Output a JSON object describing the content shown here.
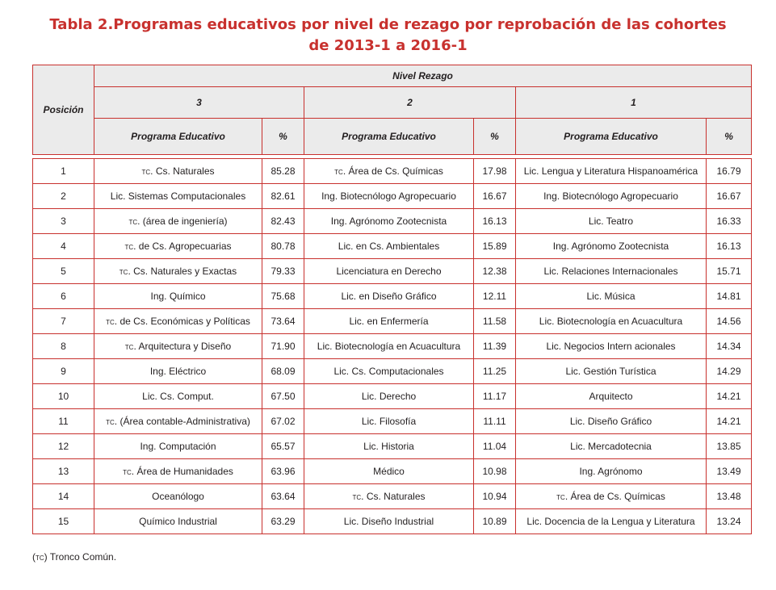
{
  "title": {
    "line1": "Tabla 2.Programas educativos por nivel de rezago por reprobación de las cohortes",
    "line2": "de 2013-1 a 2016-1"
  },
  "headers": {
    "posicion": "Posición",
    "nivel_rezago": "Nivel Rezago",
    "levels": [
      "3",
      "2",
      "1"
    ],
    "programa": "Programa Educativo",
    "pct": "%"
  },
  "rows": [
    {
      "pos": "1",
      "p3": "tc. Cs. Naturales",
      "v3": "85.28",
      "p2": "tc. Área de Cs. Químicas",
      "v2": "17.98",
      "p1": "Lic. Lengua y Literatura Hispanoamérica",
      "v1": "16.79"
    },
    {
      "pos": "2",
      "p3": "Lic. Sistemas Computacionales",
      "v3": "82.61",
      "p2": "Ing. Biotecnólogo Agropecuario",
      "v2": "16.67",
      "p1": "Ing. Biotecnólogo Agropecuario",
      "v1": "16.67"
    },
    {
      "pos": "3",
      "p3": "tc. (área de ingeniería)",
      "v3": "82.43",
      "p2": "Ing. Agrónomo Zootecnista",
      "v2": "16.13",
      "p1": "Lic. Teatro",
      "v1": "16.33"
    },
    {
      "pos": "4",
      "p3": "tc. de Cs. Agropecuarias",
      "v3": "80.78",
      "p2": "Lic. en Cs. Ambientales",
      "v2": "15.89",
      "p1": "Ing. Agrónomo Zootecnista",
      "v1": "16.13"
    },
    {
      "pos": "5",
      "p3": "tc. Cs. Naturales y Exactas",
      "v3": "79.33",
      "p2": "Licenciatura en Derecho",
      "v2": "12.38",
      "p1": "Lic. Relaciones Internacionales",
      "v1": "15.71"
    },
    {
      "pos": "6",
      "p3": "Ing. Químico",
      "v3": "75.68",
      "p2": "Lic. en Diseño Gráfico",
      "v2": "12.11",
      "p1": "Lic. Música",
      "v1": "14.81"
    },
    {
      "pos": "7",
      "p3": "tc. de Cs. Económicas y Políticas",
      "v3": "73.64",
      "p2": "Lic. en Enfermería",
      "v2": "11.58",
      "p1": "Lic. Biotecnología en Acuacultura",
      "v1": "14.56"
    },
    {
      "pos": "8",
      "p3": "tc. Arquitectura y Diseño",
      "v3": "71.90",
      "p2": "Lic. Biotecnología en Acuacultura",
      "v2": "11.39",
      "p1": "Lic. Negocios Intern acionales",
      "v1": "14.34"
    },
    {
      "pos": "9",
      "p3": "Ing. Eléctrico",
      "v3": "68.09",
      "p2": "Lic. Cs. Computacionales",
      "v2": "11.25",
      "p1": "Lic. Gestión Turística",
      "v1": "14.29"
    },
    {
      "pos": "10",
      "p3": "Lic. Cs. Comput.",
      "v3": "67.50",
      "p2": "Lic. Derecho",
      "v2": "11.17",
      "p1": "Arquitecto",
      "v1": "14.21"
    },
    {
      "pos": "11",
      "p3": "tc. (Área contable-Administrativa)",
      "v3": "67.02",
      "p2": "Lic. Filosofía",
      "v2": "11.11",
      "p1": "Lic. Diseño Gráfico",
      "v1": "14.21"
    },
    {
      "pos": "12",
      "p3": "Ing. Computación",
      "v3": "65.57",
      "p2": "Lic. Historia",
      "v2": "11.04",
      "p1": "Lic. Mercadotecnia",
      "v1": "13.85"
    },
    {
      "pos": "13",
      "p3": "tc. Área de Humanidades",
      "v3": "63.96",
      "p2": "Médico",
      "v2": "10.98",
      "p1": "Ing. Agrónomo",
      "v1": "13.49"
    },
    {
      "pos": "14",
      "p3": "Oceanólogo",
      "v3": "63.64",
      "p2": "tc. Cs. Naturales",
      "v2": "10.94",
      "p1": "tc. Área de Cs. Químicas",
      "v1": "13.48"
    },
    {
      "pos": "15",
      "p3": "Químico Industrial",
      "v3": "63.29",
      "p2": "Lic. Diseño Industrial",
      "v2": "10.89",
      "p1": "Lic. Docencia de la Lengua y Literatura",
      "v1": "13.24"
    }
  ],
  "footnote": "(tc) Tronco Común.",
  "colors": {
    "accent": "#c8312e",
    "header_bg": "#ebebeb"
  }
}
